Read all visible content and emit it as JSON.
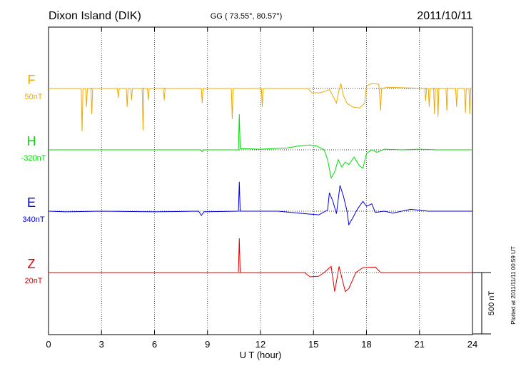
{
  "chart_data": {
    "type": "stacked-traces",
    "title": "Dixon Island (DIK)",
    "subtitle": "GG ( 73.55°,  80.57°)",
    "date": "2011/10/11",
    "xlabel": "U T (hour)",
    "footnote": "Plotted at 2011/11/11 00:59 UT",
    "xlim": [
      0,
      24
    ],
    "xticks": [
      0,
      3,
      6,
      9,
      12,
      15,
      18,
      21,
      24
    ],
    "grid": true,
    "scale_bar": {
      "value": 500,
      "label": "500 nT"
    },
    "series": [
      {
        "name": "F",
        "baseline_label": "50nT",
        "color": "#f0a800",
        "x": [
          0,
          1.85,
          1.9,
          1.95,
          2.1,
          2.15,
          2.2,
          2.4,
          2.45,
          2.5,
          3.9,
          3.95,
          4.0,
          4.4,
          4.45,
          4.5,
          4.65,
          4.7,
          4.75,
          5.3,
          5.35,
          5.4,
          5.6,
          5.65,
          5.7,
          6.5,
          6.55,
          6.6,
          8.65,
          8.7,
          8.75,
          10.35,
          10.4,
          10.45,
          12.05,
          12.1,
          12.15,
          14.7,
          14.9,
          15.4,
          15.7,
          15.9,
          16.1,
          16.3,
          16.4,
          16.55,
          16.7,
          16.9,
          17.2,
          17.6,
          17.9,
          18.0,
          18.3,
          18.7,
          18.8,
          18.85,
          19.2,
          21.3,
          21.35,
          21.4,
          21.5,
          21.55,
          21.6,
          21.8,
          21.85,
          21.9,
          22.0,
          22.05,
          22.1,
          22.5,
          22.55,
          22.6,
          23.05,
          23.1,
          23.15,
          23.55,
          23.6,
          23.65,
          23.8,
          23.85,
          23.9,
          24
        ],
        "values": [
          0,
          0,
          -350,
          0,
          0,
          -150,
          0,
          0,
          -210,
          0,
          0,
          -75,
          0,
          0,
          -150,
          0,
          0,
          -95,
          0,
          0,
          -340,
          0,
          0,
          -95,
          0,
          0,
          -95,
          0,
          0,
          -120,
          0,
          0,
          -250,
          0,
          0,
          -150,
          0,
          0,
          -35,
          -35,
          -20,
          -10,
          -60,
          -120,
          -40,
          40,
          -60,
          -120,
          -150,
          -160,
          -120,
          20,
          40,
          35,
          -180,
          0,
          10,
          0,
          -100,
          0,
          0,
          -150,
          0,
          0,
          -210,
          0,
          0,
          -230,
          0,
          0,
          -180,
          0,
          0,
          -150,
          0,
          0,
          -200,
          0,
          0,
          -210,
          0,
          0
        ]
      },
      {
        "name": "H",
        "baseline_label": "-320nT",
        "color": "#00dd00",
        "x": [
          0,
          8.6,
          8.7,
          8.8,
          10.75,
          10.8,
          10.85,
          12,
          13.5,
          14.3,
          14.8,
          15.2,
          15.6,
          15.8,
          16.0,
          16.2,
          16.4,
          16.6,
          16.8,
          17.0,
          17.3,
          17.6,
          17.8,
          18.0,
          18.3,
          18.6,
          19,
          20,
          21,
          22,
          24
        ],
        "values": [
          0,
          0,
          -15,
          0,
          0,
          290,
          10,
          5,
          15,
          35,
          40,
          30,
          0,
          -80,
          -230,
          -180,
          -80,
          -140,
          -100,
          -120,
          -60,
          -130,
          -150,
          -30,
          0,
          -20,
          5,
          0,
          5,
          0,
          0
        ]
      },
      {
        "name": "E",
        "baseline_label": "340nT",
        "color": "#0000dd",
        "x": [
          0,
          1,
          3,
          6,
          8.5,
          8.65,
          8.8,
          10.75,
          10.8,
          10.85,
          13,
          14.5,
          15.3,
          15.8,
          15.9,
          16.1,
          16.3,
          16.5,
          16.7,
          16.9,
          17.0,
          17.2,
          17.5,
          17.8,
          18.0,
          18.3,
          18.5,
          19,
          19.5,
          20.5,
          21.5,
          24
        ],
        "values": [
          0,
          -5,
          0,
          -5,
          0,
          -35,
          -5,
          0,
          240,
          0,
          0,
          -20,
          -30,
          10,
          150,
          80,
          -20,
          210,
          120,
          0,
          -110,
          -60,
          20,
          80,
          40,
          60,
          -10,
          0,
          -15,
          15,
          0,
          0
        ]
      },
      {
        "name": "Z",
        "baseline_label": "20nT",
        "color": "#dd0000",
        "x": [
          0,
          10.75,
          10.8,
          10.85,
          14.5,
          14.8,
          15.3,
          15.6,
          16.0,
          16.2,
          16.45,
          16.6,
          16.8,
          17.0,
          17.4,
          17.8,
          18.5,
          18.8,
          24
        ],
        "values": [
          0,
          0,
          280,
          0,
          0,
          -35,
          -30,
          0,
          50,
          -155,
          50,
          -40,
          -155,
          -130,
          0,
          40,
          45,
          0,
          0
        ]
      }
    ]
  }
}
